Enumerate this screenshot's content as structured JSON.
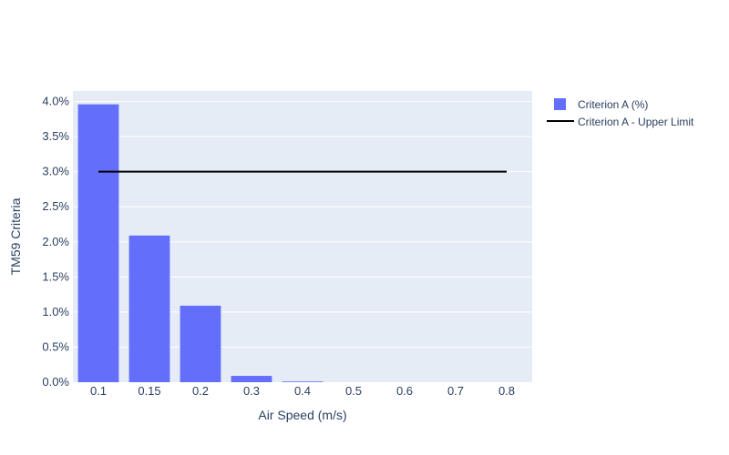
{
  "chart_data": {
    "type": "bar",
    "categories": [
      "0.1",
      "0.15",
      "0.2",
      "0.3",
      "0.4",
      "0.5",
      "0.6",
      "0.7",
      "0.8"
    ],
    "series": [
      {
        "name": "Criterion A (%)",
        "type": "bar",
        "values": [
          3.96,
          2.09,
          1.09,
          0.09,
          0.01,
          0,
          0,
          0,
          0
        ],
        "color": "#636efa"
      },
      {
        "name": "Criterion A - Upper Limit",
        "type": "line",
        "values": [
          3.0,
          3.0,
          3.0,
          3.0,
          3.0,
          3.0,
          3.0,
          3.0,
          3.0
        ],
        "color": "#000000"
      }
    ],
    "xlabel": "Air Speed (m/s)",
    "ylabel": "TM59 Criteria",
    "ylim": [
      0,
      4.15
    ],
    "yticks": [
      0,
      0.5,
      1.0,
      1.5,
      2.0,
      2.5,
      3.0,
      3.5,
      4.0
    ],
    "ytick_labels": [
      "0.0%",
      "0.5%",
      "1.0%",
      "1.5%",
      "2.0%",
      "2.5%",
      "3.0%",
      "3.5%",
      "4.0%"
    ],
    "grid": true,
    "legend_position": "top-right",
    "plot_background": "#e5ecf6"
  }
}
